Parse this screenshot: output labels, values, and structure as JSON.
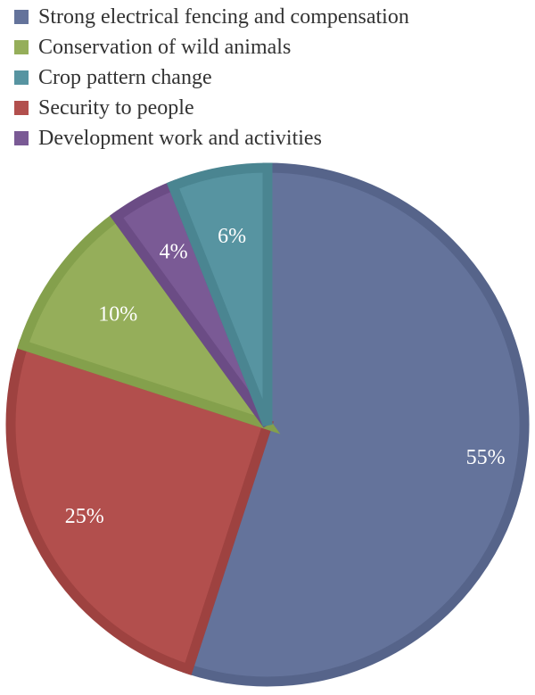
{
  "chart_data": {
    "type": "pie",
    "legend_position": "top-left",
    "slices": [
      {
        "name": "Strong electrical fencing and compensation",
        "value": 55,
        "label": "55%",
        "color": "#64739b",
        "border": "#56648a"
      },
      {
        "name": "Security to people",
        "value": 25,
        "label": "25%",
        "color": "#b24f4d",
        "border": "#9e4240"
      },
      {
        "name": "Conservation of wild animals",
        "value": 10,
        "label": "10%",
        "color": "#95ae5a",
        "border": "#84a04c"
      },
      {
        "name": "Development work and activities",
        "value": 4,
        "label": "4%",
        "color": "#7a5a95",
        "border": "#6b4c85"
      },
      {
        "name": "Crop pattern change",
        "value": 6,
        "label": "6%",
        "color": "#5794a1",
        "border": "#4a8591"
      }
    ],
    "legend": [
      {
        "name": "Strong electrical fencing and compensation",
        "color": "#64739b"
      },
      {
        "name": "Conservation of wild animals",
        "color": "#95ae5a"
      },
      {
        "name": "Crop pattern change",
        "color": "#5794a1"
      },
      {
        "name": "Security to people",
        "color": "#b24f4d"
      },
      {
        "name": "Development work and activities",
        "color": "#7a5a95"
      }
    ]
  }
}
